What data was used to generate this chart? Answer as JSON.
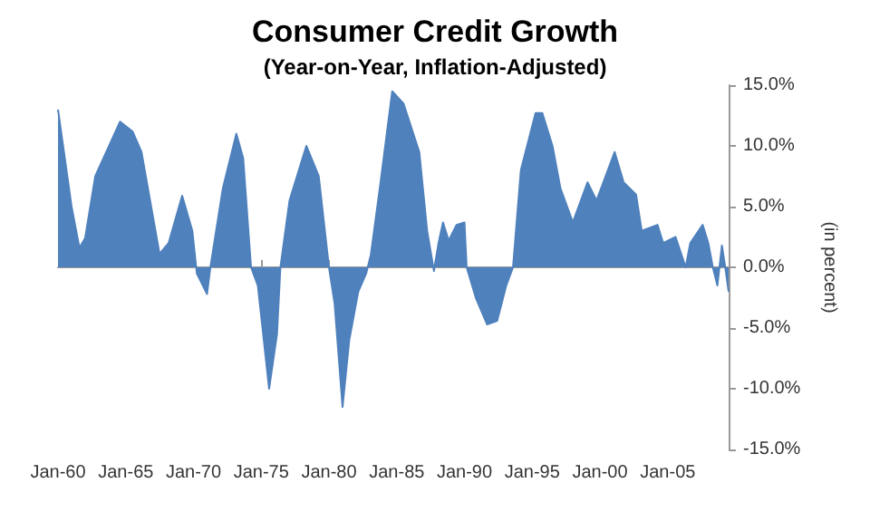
{
  "chart_data": {
    "type": "area",
    "title": "Consumer Credit Growth",
    "subtitle": "(Year-on-Year, Inflation-Adjusted)",
    "ylabel": "(in percent)",
    "x": [
      "1960-01",
      "1961-01",
      "1961-08",
      "1962-01",
      "1962-10",
      "1964-08",
      "1965-07",
      "1966-03",
      "1967-07",
      "1968-03",
      "1969-03",
      "1969-12",
      "1970-04",
      "1971-01",
      "1971-04",
      "1972-03",
      "1973-03",
      "1973-09",
      "1974-04",
      "1974-10",
      "1975-08",
      "1976-03",
      "1976-06",
      "1977-02",
      "1978-05",
      "1979-04",
      "1980-01",
      "1980-06",
      "1981-01",
      "1981-07",
      "1982-03",
      "1982-10",
      "1983-02",
      "1983-10",
      "1984-09",
      "1985-07",
      "1986-09",
      "1987-04",
      "1987-10",
      "1988-02",
      "1988-06",
      "1988-11",
      "1989-06",
      "1990-01",
      "1990-03",
      "1990-11",
      "1991-09",
      "1992-06",
      "1993-02",
      "1993-08",
      "1994-03",
      "1995-04",
      "1995-10",
      "1996-07",
      "1997-02",
      "1998-01",
      "1999-02",
      "1999-10",
      "2001-02",
      "2001-10",
      "2002-09",
      "2003-02",
      "2004-04",
      "2004-09",
      "2005-08",
      "2006-05",
      "2006-09",
      "2007-08",
      "2008-01",
      "2008-05",
      "2008-09",
      "2009-01",
      "2009-04",
      "2009-07"
    ],
    "series": [
      {
        "color": "#4f81bd",
        "values": [
          13.0,
          5.0,
          1.6,
          2.4,
          7.5,
          12.0,
          11.2,
          9.5,
          1.1,
          2.0,
          5.9,
          3.0,
          -0.5,
          -2.2,
          0,
          6.5,
          11.0,
          9.0,
          0,
          -1.5,
          -10.0,
          -5.5,
          0,
          5.5,
          10.0,
          7.5,
          0,
          -3.0,
          -11.5,
          -6.0,
          -2.0,
          -0.5,
          1.0,
          6.5,
          14.5,
          13.5,
          9.5,
          3.0,
          -0.3,
          2.0,
          3.7,
          2.2,
          3.5,
          3.7,
          0,
          -2.5,
          -4.7,
          -4.4,
          -1.5,
          0,
          8.0,
          12.7,
          12.7,
          10.0,
          6.5,
          3.7,
          7.0,
          5.5,
          9.5,
          7.0,
          6.0,
          3.0,
          3.5,
          2.0,
          2.5,
          0,
          2.0,
          3.5,
          2.0,
          0,
          -1.5,
          1.8,
          0,
          -2.0
        ]
      }
    ],
    "xlim": [
      "1960-01",
      "2009-07"
    ],
    "xticks": [
      {
        "value": "1960-01",
        "label": "Jan-60"
      },
      {
        "value": "1965-01",
        "label": "Jan-65"
      },
      {
        "value": "1970-01",
        "label": "Jan-70"
      },
      {
        "value": "1975-01",
        "label": "Jan-75"
      },
      {
        "value": "1980-01",
        "label": "Jan-80"
      },
      {
        "value": "1985-01",
        "label": "Jan-85"
      },
      {
        "value": "1990-01",
        "label": "Jan-90"
      },
      {
        "value": "1995-01",
        "label": "Jan-95"
      },
      {
        "value": "2000-01",
        "label": "Jan-00"
      },
      {
        "value": "2005-01",
        "label": "Jan-05"
      }
    ],
    "ylim": [
      -15,
      15
    ],
    "yticks": [
      {
        "value": -15,
        "label": "-15.0%"
      },
      {
        "value": -10,
        "label": "-10.0%"
      },
      {
        "value": -5,
        "label": "-5.0%"
      },
      {
        "value": 0,
        "label": "0.0%"
      },
      {
        "value": 5,
        "label": "5.0%"
      },
      {
        "value": 10,
        "label": "10.0%"
      },
      {
        "value": 15,
        "label": "15.0%"
      }
    ],
    "tick_labels": "xy"
  }
}
